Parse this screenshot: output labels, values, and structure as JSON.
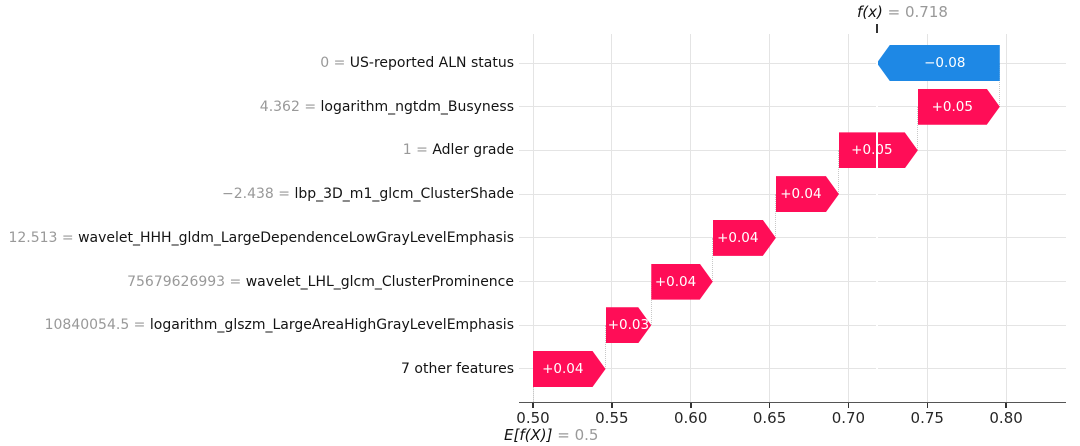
{
  "chart_data": {
    "type": "bar",
    "subtype": "shap-waterfall",
    "title": "",
    "xlabel": "",
    "ylabel": "",
    "grid": true,
    "xlim": [
      0.49,
      0.835
    ],
    "fx": {
      "func": "f(x)",
      "eq_value": "= 0.718",
      "value": 0.718
    },
    "base": {
      "func": "E[f(X)]",
      "eq_value": "= 0.5",
      "value": 0.5
    },
    "x_ticks": [
      {
        "label": "0.50",
        "value": 0.5
      },
      {
        "label": "0.55",
        "value": 0.55
      },
      {
        "label": "0.60",
        "value": 0.6
      },
      {
        "label": "0.65",
        "value": 0.65
      },
      {
        "label": "0.70",
        "value": 0.7
      },
      {
        "label": "0.75",
        "value": 0.75
      },
      {
        "label": "0.80",
        "value": 0.8
      }
    ],
    "colors": {
      "positive": "#ff0d57",
      "negative": "#1e88e5",
      "grid": "#e4e4e4",
      "value_text": "#999999",
      "feature_text": "#141414"
    },
    "features": [
      {
        "value_label": "0 = ",
        "name": "US-reported ALN status",
        "contribution": "−0.08",
        "start": 0.796,
        "end": 0.718,
        "sign": "negative"
      },
      {
        "value_label": "4.362 = ",
        "name": "logarithm_ngtdm_Busyness",
        "contribution": "+0.05",
        "start": 0.744,
        "end": 0.796,
        "sign": "positive"
      },
      {
        "value_label": "1 = ",
        "name": "Adler grade",
        "contribution": "+0.05",
        "start": 0.694,
        "end": 0.744,
        "sign": "positive"
      },
      {
        "value_label": "−2.438 = ",
        "name": "lbp_3D_m1_glcm_ClusterShade",
        "contribution": "+0.04",
        "start": 0.654,
        "end": 0.694,
        "sign": "positive"
      },
      {
        "value_label": "12.513 = ",
        "name": "wavelet_HHH_gldm_LargeDependenceLowGrayLevelEmphasis",
        "contribution": "+0.04",
        "start": 0.614,
        "end": 0.654,
        "sign": "positive"
      },
      {
        "value_label": "75679626993 = ",
        "name": "wavelet_LHL_glcm_ClusterProminence",
        "contribution": "+0.04",
        "start": 0.575,
        "end": 0.614,
        "sign": "positive"
      },
      {
        "value_label": "10840054.5 = ",
        "name": "logarithm_glszm_LargeAreaHighGrayLevelEmphasis",
        "contribution": "+0.03",
        "start": 0.546,
        "end": 0.575,
        "sign": "positive"
      },
      {
        "value_label": "",
        "name": "7 other features",
        "contribution": "+0.04",
        "start": 0.5,
        "end": 0.546,
        "sign": "positive"
      }
    ]
  }
}
